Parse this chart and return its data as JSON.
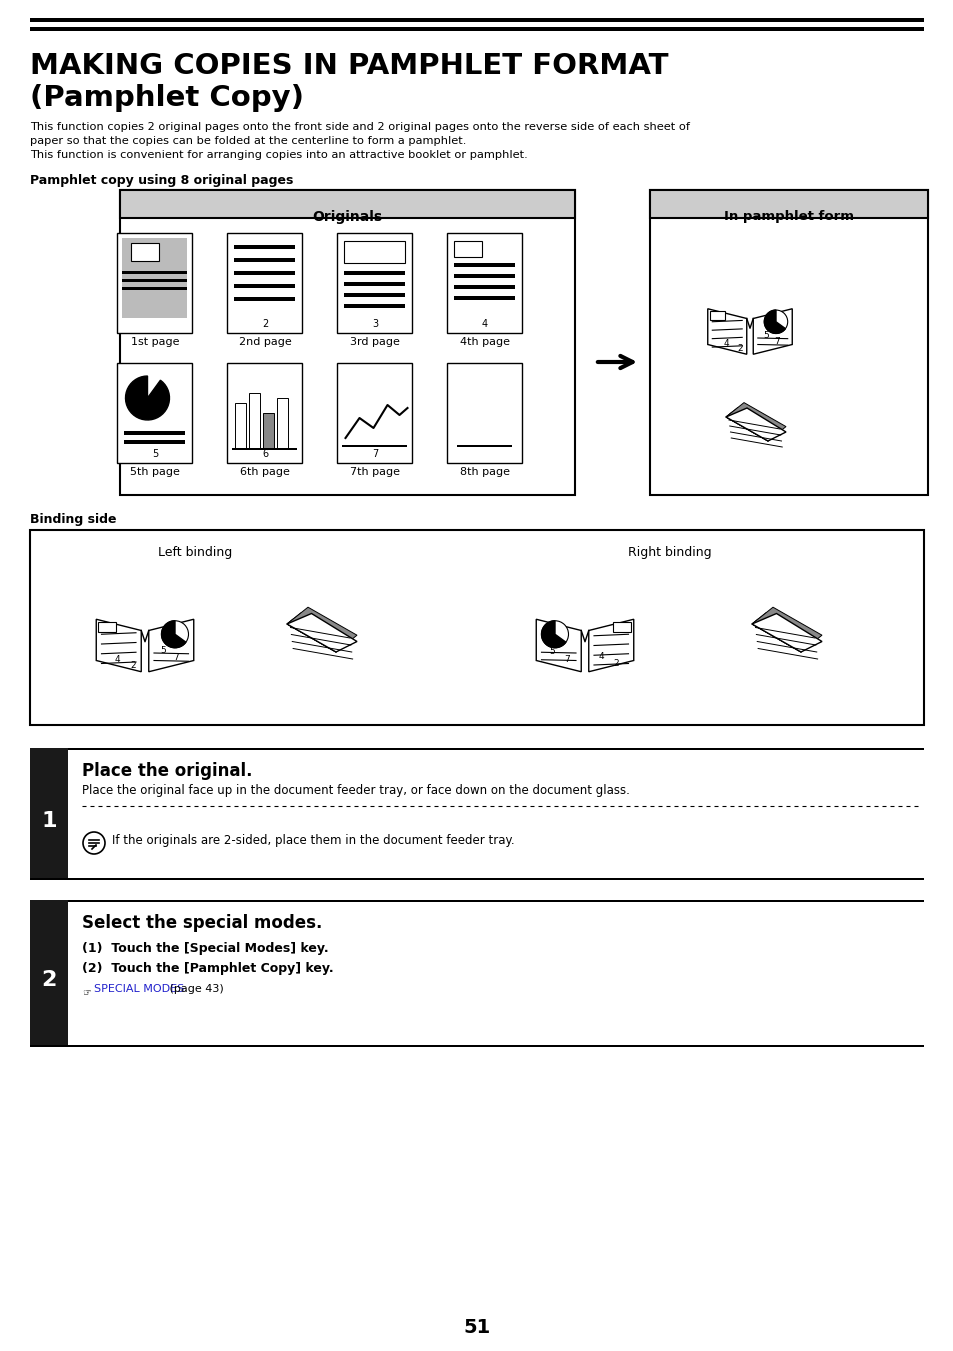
{
  "bg_color": "#ffffff",
  "title_line1": "MAKING COPIES IN PAMPHLET FORMAT",
  "title_line2": "(Pamphlet Copy)",
  "body_text1": "This function copies 2 original pages onto the front side and 2 original pages onto the reverse side of each sheet of",
  "body_text2": "paper so that the copies can be folded at the centerline to form a pamphlet.",
  "body_text3": "This function is convenient for arranging copies into an attractive booklet or pamphlet.",
  "section_label": "Pamphlet copy using 8 original pages",
  "binding_label": "Binding side",
  "originals_header": "Originals",
  "pamphlet_form_header": "In pamphlet form",
  "left_binding_label": "Left binding",
  "right_binding_label": "Right binding",
  "page_labels_top": [
    "1st page",
    "2nd page",
    "3rd page",
    "4th page"
  ],
  "page_labels_bottom": [
    "5th page",
    "6th page",
    "7th page",
    "8th page"
  ],
  "step1_num": "1",
  "step1_title": "Place the original.",
  "step1_body": "Place the original face up in the document feeder tray, or face down on the document glass.",
  "step1_note": "If the originals are 2-sided, place them in the document feeder tray.",
  "step2_num": "2",
  "step2_title": "Select the special modes.",
  "step2_item1": "(1)  Touch the [Special Modes] key.",
  "step2_item2": "(2)  Touch the [Pamphlet Copy] key.",
  "step2_link_text": "SPECIAL MODES",
  "step2_link_suffix": " (page 43)",
  "link_color": "#2222cc",
  "page_number": "51",
  "step_bg_color": "#1a1a1a",
  "step_text_color": "#ffffff",
  "header_bg_color": "#cccccc"
}
